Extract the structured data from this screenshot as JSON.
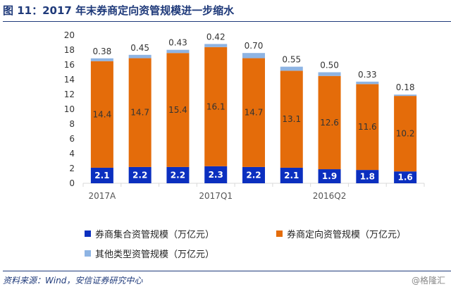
{
  "title": "图 11：2017 年末券商定向资管规模进一步缩水",
  "source": "资料来源：Wind，安信证券研究中心",
  "watermark": "@格隆汇",
  "chart_data": {
    "type": "bar",
    "stacked": true,
    "categories": [
      "2017A",
      "",
      "",
      "2017Q1",
      "",
      "",
      "2016Q2",
      "",
      ""
    ],
    "series": [
      {
        "name": "券商集合资管规模（万亿元）",
        "color": "#0b2fbf",
        "values": [
          2.1,
          2.2,
          2.2,
          2.3,
          2.2,
          2.1,
          1.9,
          1.8,
          1.6
        ]
      },
      {
        "name": "券商定向资管规模（万亿元）",
        "color": "#e46c0a",
        "values": [
          14.4,
          14.7,
          15.4,
          16.1,
          14.7,
          13.1,
          12.6,
          11.6,
          10.2
        ]
      },
      {
        "name": "其他类型资管规模（万亿元）",
        "color": "#8eb4e3",
        "values": [
          0.38,
          0.45,
          0.43,
          0.42,
          0.7,
          0.55,
          0.5,
          0.33,
          0.18
        ]
      }
    ],
    "other_labels": [
      "0.38",
      "0.45",
      "0.43",
      "0.42",
      "0.70",
      "0.55",
      "0.50",
      "0.33",
      "0.18"
    ],
    "ylim": [
      0,
      20
    ],
    "yticks": [
      0,
      2,
      4,
      6,
      8,
      10,
      12,
      14,
      16,
      18,
      20
    ],
    "grid": false,
    "legend": "bottom"
  }
}
